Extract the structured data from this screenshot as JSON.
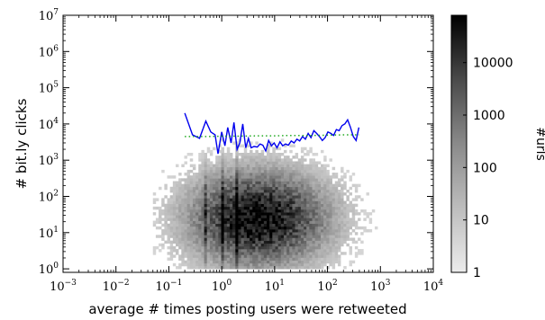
{
  "chart_data": {
    "type": "heatmap",
    "xlabel": "average # times posting users were retweeted",
    "ylabel": "# bit.ly clicks",
    "x_scale": "log",
    "y_scale": "log",
    "xlim": [
      0.001,
      10000
    ],
    "ylim": [
      0.8,
      10000000
    ],
    "x_ticks": [
      {
        "base": "10",
        "exp": "−3"
      },
      {
        "base": "10",
        "exp": "−2"
      },
      {
        "base": "10",
        "exp": "−1"
      },
      {
        "base": "10",
        "exp": "0"
      },
      {
        "base": "10",
        "exp": "1"
      },
      {
        "base": "10",
        "exp": "2"
      },
      {
        "base": "10",
        "exp": "3"
      },
      {
        "base": "10",
        "exp": "4"
      }
    ],
    "y_ticks": [
      {
        "base": "10",
        "exp": "0"
      },
      {
        "base": "10",
        "exp": "1"
      },
      {
        "base": "10",
        "exp": "2"
      },
      {
        "base": "10",
        "exp": "3"
      },
      {
        "base": "10",
        "exp": "4"
      },
      {
        "base": "10",
        "exp": "5"
      },
      {
        "base": "10",
        "exp": "6"
      },
      {
        "base": "10",
        "exp": "7"
      }
    ],
    "colorbar": {
      "label": "#urls",
      "scale": "log",
      "range": [
        1,
        80000
      ],
      "ticks": [
        "1",
        "10",
        "100",
        "1000",
        "10000"
      ],
      "colormap": "white-to-black"
    },
    "heatmap_extent": {
      "x": [
        0.05,
        1000
      ],
      "y": [
        1,
        100000
      ]
    },
    "series": [
      {
        "color": "#0000ee",
        "style": "solid",
        "x": [
          0.2,
          0.28,
          0.38,
          0.5,
          0.62,
          0.75,
          0.85,
          1.0,
          1.15,
          1.3,
          1.5,
          1.7,
          1.95,
          2.2,
          2.5,
          2.85,
          3.2,
          3.6,
          4.1,
          4.7,
          5.3,
          6.0,
          6.8,
          7.7,
          8.7,
          9.8,
          11.1,
          12.6,
          14.2,
          16.1,
          18.2,
          20.6,
          23.3,
          26.4,
          29.8,
          33.7,
          38.1,
          43.1,
          48.7,
          55.1,
          62.3,
          70.4,
          79.6,
          90.0,
          101.8,
          115.1,
          130.1,
          147.1,
          166.3,
          188.0,
          212.6,
          240.3,
          271.7,
          307.2,
          347.3,
          392.6
        ],
        "y": [
          20000,
          5000,
          4000,
          12000,
          6000,
          5000,
          1500,
          6000,
          2500,
          8000,
          3000,
          11000,
          2000,
          3000,
          10000,
          2200,
          4000,
          2200,
          2400,
          2300,
          2800,
          2600,
          1800,
          3500,
          2500,
          3000,
          2200,
          3200,
          2500,
          2800,
          2600,
          3400,
          3000,
          3800,
          3400,
          4500,
          3800,
          5500,
          4200,
          6500,
          5500,
          4500,
          3500,
          4200,
          6000,
          5500,
          4800,
          7000,
          6500,
          9000,
          10000,
          13000,
          8000,
          4500,
          3500,
          8000
        ]
      },
      {
        "color": "#22aa22",
        "style": "dotted",
        "x": [
          0.2,
          0.5,
          1.0,
          2.0,
          5.0,
          10.0,
          20.0,
          50.0,
          100.0,
          200.0,
          400.0
        ],
        "y": [
          4500,
          4500,
          4600,
          4600,
          4700,
          4700,
          4800,
          4800,
          4900,
          5000,
          5000
        ]
      }
    ]
  }
}
